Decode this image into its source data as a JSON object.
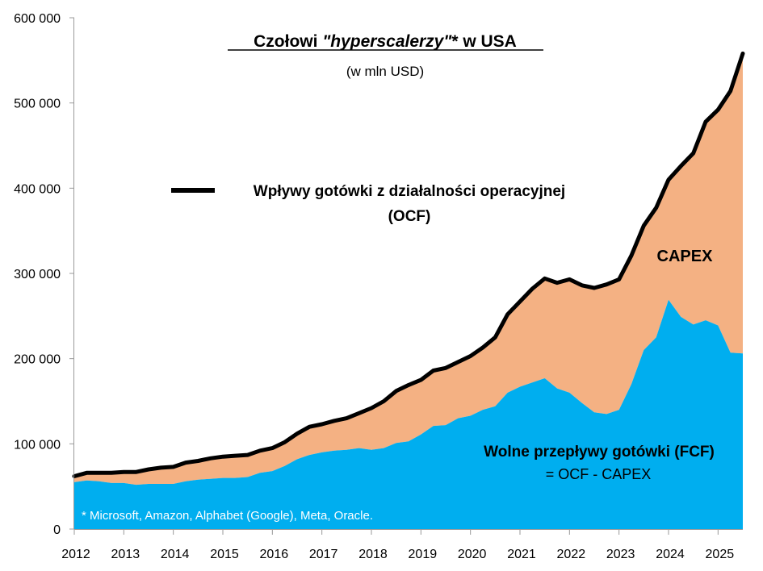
{
  "chart_data": {
    "type": "area",
    "title": "Czołowi \"hyperscalerzy\"* w USA",
    "title_parts": {
      "prefix": "Czołowi ",
      "italic": "\"hyperscalerzy\"",
      "suffix": "* w USA"
    },
    "subtitle": "(w mln USD)",
    "ylim": [
      0,
      600000
    ],
    "y_ticks": [
      0,
      100000,
      200000,
      300000,
      400000,
      500000,
      600000
    ],
    "y_tick_labels": [
      "0",
      "100 000",
      "200 000",
      "300 000",
      "400 000",
      "500 000",
      "600 000"
    ],
    "x_ticks": [
      2012,
      2013,
      2014,
      2015,
      2016,
      2017,
      2018,
      2019,
      2020,
      2021,
      2022,
      2023,
      2024,
      2025
    ],
    "x_tick_labels": [
      "2012",
      "2013",
      "2014",
      "2015",
      "2016",
      "2017",
      "2018",
      "2019",
      "2020",
      "2021",
      "2022",
      "2023",
      "2024",
      "2025"
    ],
    "x": [
      2012.0,
      2012.25,
      2012.5,
      2012.75,
      2013.0,
      2013.25,
      2013.5,
      2013.75,
      2014.0,
      2014.25,
      2014.5,
      2014.75,
      2015.0,
      2015.25,
      2015.5,
      2015.75,
      2016.0,
      2016.25,
      2016.5,
      2016.75,
      2017.0,
      2017.25,
      2017.5,
      2017.75,
      2018.0,
      2018.25,
      2018.5,
      2018.75,
      2019.0,
      2019.25,
      2019.5,
      2019.75,
      2020.0,
      2020.25,
      2020.5,
      2020.75,
      2021.0,
      2021.25,
      2021.5,
      2021.75,
      2022.0,
      2022.25,
      2022.5,
      2022.75,
      2023.0,
      2023.25,
      2023.5,
      2023.75,
      2024.0,
      2024.25,
      2024.5,
      2024.75,
      2025.0,
      2025.25,
      2025.5
    ],
    "series": [
      {
        "name": "Wpływy gotówki z działalności operacyjnej",
        "label_suffix": "(OCF)",
        "style": "line",
        "color": "#000000",
        "values": [
          62000,
          66000,
          66000,
          66000,
          67000,
          67000,
          70000,
          72000,
          73000,
          78000,
          80000,
          83000,
          85000,
          86000,
          87000,
          92000,
          95000,
          102000,
          112000,
          120000,
          123000,
          127000,
          130000,
          136000,
          142000,
          150000,
          162000,
          169000,
          175000,
          186000,
          189000,
          196000,
          203000,
          213000,
          225000,
          252000,
          267000,
          282000,
          294000,
          289000,
          293000,
          286000,
          283000,
          287000,
          293000,
          321000,
          356000,
          377000,
          410000,
          426000,
          441000,
          478000,
          492000,
          514000,
          558000
        ]
      },
      {
        "name": "",
        "style": "area",
        "color": "#00aeef",
        "values": [
          55000,
          57000,
          56000,
          54000,
          54000,
          52000,
          53000,
          53000,
          53000,
          56000,
          58000,
          59000,
          60000,
          60000,
          61000,
          66000,
          68000,
          74000,
          82000,
          87000,
          90000,
          92000,
          93000,
          95000,
          93000,
          95000,
          101000,
          103000,
          111000,
          121000,
          122000,
          130000,
          133000,
          140000,
          144000,
          160000,
          167000,
          172000,
          177000,
          165000,
          160000,
          148000,
          137000,
          135000,
          140000,
          170000,
          210000,
          225000,
          269000,
          249000,
          240000,
          245000,
          239000,
          207000,
          206000
        ]
      }
    ],
    "area_colors": {
      "fcf": "#00aeef",
      "capex": "#f4b183"
    },
    "legend": {
      "placement": "top-center"
    },
    "annotations": {
      "capex": "CAPEX",
      "fcf_title": "Wolne przepływy gotówki (FCF)",
      "fcf_formula": "= OCF - CAPEX",
      "footnote": "* Microsoft, Amazon, Alphabet (Google), Meta, Oracle."
    },
    "grid": false
  }
}
